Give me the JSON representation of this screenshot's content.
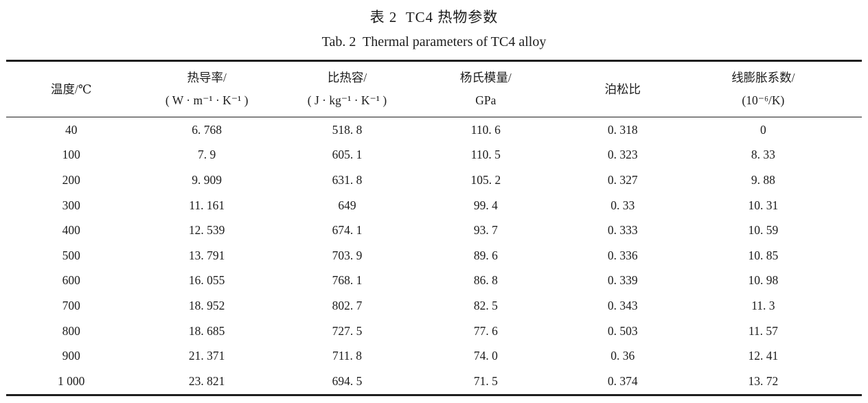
{
  "titles": {
    "cn": "表 2  TC4 热物参数",
    "en": "Tab. 2  Thermal parameters of TC4 alloy"
  },
  "table": {
    "columns": [
      {
        "line1": "温度/℃",
        "line2": ""
      },
      {
        "line1": "热导率/",
        "line2": "( W · m⁻¹ · K⁻¹ )"
      },
      {
        "line1": "比热容/",
        "line2": "( J · kg⁻¹ · K⁻¹ )"
      },
      {
        "line1": "杨氏模量/",
        "line2": "GPa"
      },
      {
        "line1": "泊松比",
        "line2": ""
      },
      {
        "line1": "线膨胀系数/",
        "line2": "(10⁻⁶/K)"
      }
    ],
    "rows": [
      [
        "40",
        "6. 768",
        "518. 8",
        "110. 6",
        "0. 318",
        "0"
      ],
      [
        "100",
        "7. 9",
        "605. 1",
        "110. 5",
        "0. 323",
        "8. 33"
      ],
      [
        "200",
        "9. 909",
        "631. 8",
        "105. 2",
        "0. 327",
        "9. 88"
      ],
      [
        "300",
        "11. 161",
        "649",
        "99. 4",
        "0. 33",
        "10. 31"
      ],
      [
        "400",
        "12. 539",
        "674. 1",
        "93. 7",
        "0. 333",
        "10. 59"
      ],
      [
        "500",
        "13. 791",
        "703. 9",
        "89. 6",
        "0. 336",
        "10. 85"
      ],
      [
        "600",
        "16. 055",
        "768. 1",
        "86. 8",
        "0. 339",
        "10. 98"
      ],
      [
        "700",
        "18. 952",
        "802. 7",
        "82. 5",
        "0. 343",
        "11. 3"
      ],
      [
        "800",
        "18. 685",
        "727. 5",
        "77. 6",
        "0. 503",
        "11. 57"
      ],
      [
        "900",
        "21. 371",
        "711. 8",
        "74. 0",
        "0. 36",
        "12. 41"
      ],
      [
        "1 000",
        "23. 821",
        "694. 5",
        "71. 5",
        "0. 374",
        "13. 72"
      ]
    ]
  }
}
